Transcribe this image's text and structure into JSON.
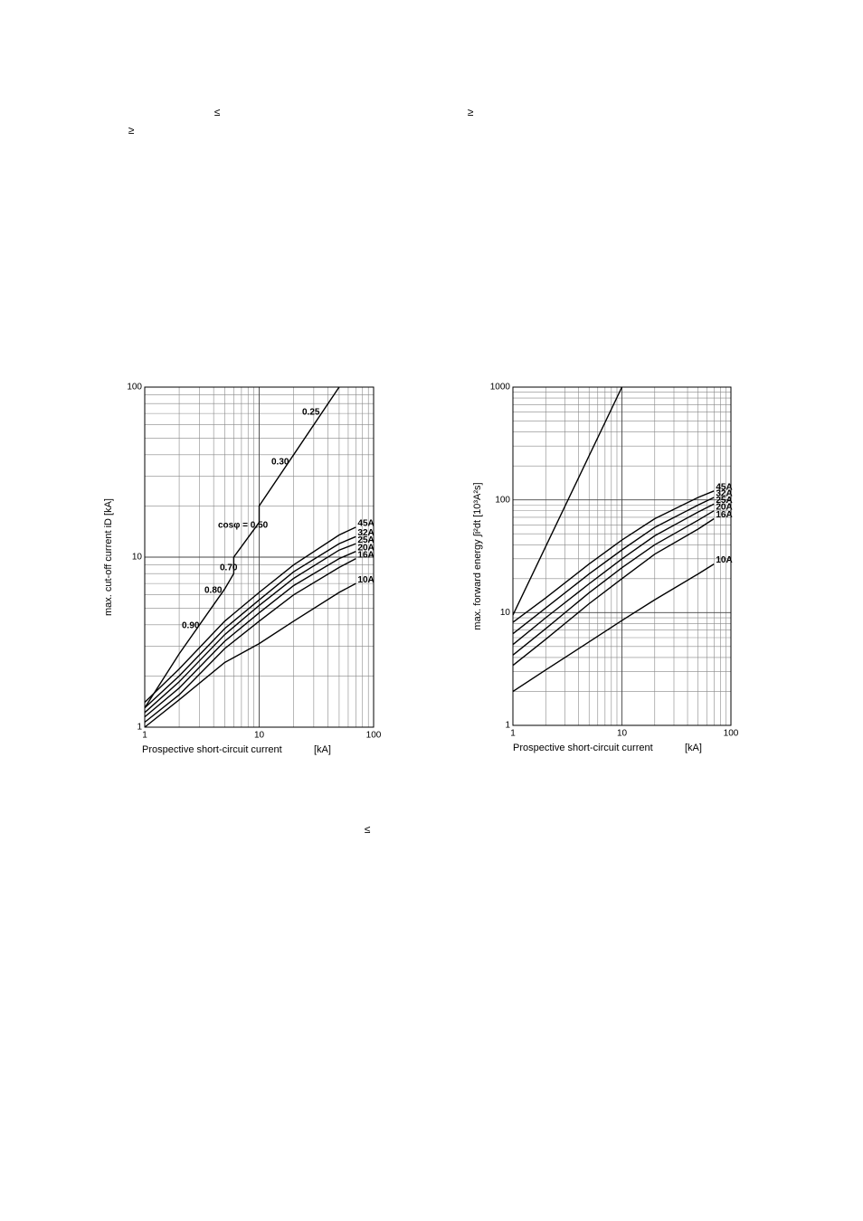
{
  "symbols": [
    "≤",
    "≥",
    "≥",
    "≤"
  ],
  "chart_data": [
    {
      "type": "line",
      "log_x": true,
      "log_y": true,
      "grid": true,
      "ylabel": "max. cut-off current iD [kA]",
      "xlabel": "Prospective short-circuit current",
      "xunit": "[kA]",
      "xlim": [
        1,
        100
      ],
      "ylim": [
        1,
        100
      ],
      "xticks": [
        1,
        10,
        100
      ],
      "yticks": [
        1,
        10,
        100
      ],
      "minor_xticks": [
        2,
        3,
        4,
        5,
        6,
        7,
        8,
        9,
        20,
        30,
        40,
        50,
        60,
        70,
        80,
        90
      ],
      "minor_yticks": [
        2,
        3,
        4,
        5,
        6,
        7,
        8,
        9,
        20,
        30,
        40,
        50,
        60,
        70,
        80,
        90
      ],
      "x": [
        1,
        2,
        5,
        10,
        20,
        50,
        70
      ],
      "series": [
        {
          "name": "45A",
          "color": "#000000",
          "values": [
            1.4,
            2.2,
            4.2,
            6.2,
            9,
            13.5,
            15
          ]
        },
        {
          "name": "32A",
          "color": "#000000",
          "values": [
            1.3,
            2.0,
            3.8,
            5.6,
            8.2,
            12,
            13.2
          ]
        },
        {
          "name": "25A",
          "color": "#000000",
          "values": [
            1.22,
            1.85,
            3.5,
            5.2,
            7.5,
            11,
            12
          ]
        },
        {
          "name": "20A",
          "color": "#000000",
          "values": [
            1.15,
            1.7,
            3.2,
            4.7,
            6.8,
            9.8,
            10.8
          ]
        },
        {
          "name": "16A",
          "color": "#000000",
          "values": [
            1.07,
            1.55,
            2.9,
            4.2,
            6,
            8.7,
            9.8
          ]
        },
        {
          "name": "10A",
          "color": "#000000",
          "values": [
            1.0,
            1.45,
            2.4,
            3.1,
            4.2,
            6.2,
            7
          ]
        },
        {
          "x": [
            1,
            2,
            5,
            6,
            6,
            10,
            10,
            20,
            50
          ],
          "color": "#000000",
          "values": [
            1.3,
            2.7,
            6.5,
            8,
            10,
            16,
            20,
            40,
            100
          ]
        }
      ],
      "annotations": [
        "0.25",
        "0.30",
        "cosφ = 0.50",
        "0.70",
        "0.80",
        "0.90"
      ]
    },
    {
      "type": "line",
      "log_x": true,
      "log_y": true,
      "grid": true,
      "ylabel": "max. forward energy ∫i²dt [10³A²s]",
      "xlabel": "Prospective short-circuit current",
      "xunit": "[kA]",
      "xlim": [
        1,
        100
      ],
      "ylim": [
        1,
        1000
      ],
      "xticks": [
        1,
        10,
        100
      ],
      "yticks": [
        1,
        10,
        100,
        1000
      ],
      "minor_xticks": [
        2,
        3,
        4,
        5,
        6,
        7,
        8,
        9,
        20,
        30,
        40,
        50,
        60,
        70,
        80,
        90
      ],
      "minor_yticks": [
        2,
        3,
        4,
        5,
        6,
        7,
        8,
        9,
        20,
        30,
        40,
        50,
        60,
        70,
        80,
        90,
        200,
        300,
        400,
        500,
        600,
        700,
        800,
        900
      ],
      "x": [
        1,
        2,
        5,
        10,
        20,
        50,
        70
      ],
      "series": [
        {
          "name": "45A",
          "color": "#000000",
          "values": [
            8.2,
            13.5,
            27,
            44,
            68,
            105,
            120
          ]
        },
        {
          "name": "32A",
          "color": "#000000",
          "values": [
            6.5,
            11,
            22,
            36,
            57,
            90,
            105
          ]
        },
        {
          "name": "25A",
          "color": "#000000",
          "values": [
            5.2,
            9,
            18,
            30,
            48,
            78,
            92
          ]
        },
        {
          "name": "20A",
          "color": "#000000",
          "values": [
            4.2,
            7.2,
            15,
            25,
            40,
            66,
            80
          ]
        },
        {
          "name": "16A",
          "color": "#000000",
          "values": [
            3.4,
            5.8,
            12,
            20,
            33,
            55,
            68
          ]
        },
        {
          "name": "10A",
          "color": "#000000",
          "values": [
            2,
            3.1,
            5.5,
            8.5,
            13,
            22,
            27
          ]
        },
        {
          "x": [
            1,
            10
          ],
          "color": "#000000",
          "values": [
            9.5,
            1000
          ]
        }
      ]
    }
  ]
}
